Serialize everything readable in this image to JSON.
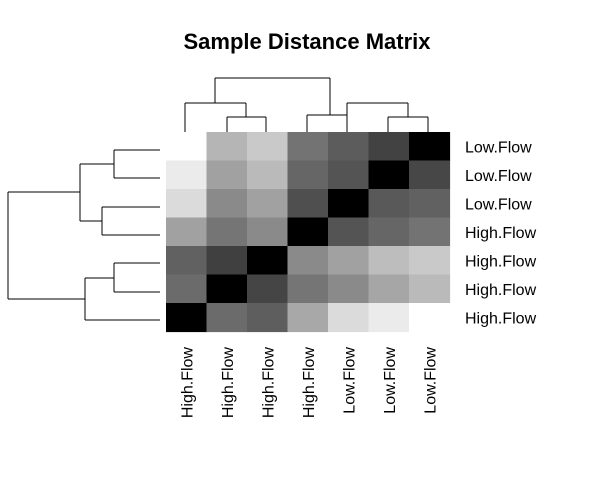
{
  "chart_data": {
    "type": "heatmap",
    "title": "Sample Distance Matrix",
    "row_labels": [
      "Low.Flow",
      "Low.Flow",
      "Low.Flow",
      "High.Flow",
      "High.Flow",
      "High.Flow",
      "High.Flow"
    ],
    "col_labels": [
      "High.Flow",
      "High.Flow",
      "High.Flow",
      "High.Flow",
      "Low.Flow",
      "Low.Flow",
      "Low.Flow"
    ],
    "color_scale": {
      "low": "#000000",
      "high": "#ffffff"
    },
    "values": [
      [
        1.0,
        0.71,
        0.79,
        0.45,
        0.36,
        0.26,
        0.0
      ],
      [
        0.92,
        0.63,
        0.73,
        0.4,
        0.33,
        0.0,
        0.28
      ],
      [
        0.86,
        0.54,
        0.63,
        0.31,
        0.0,
        0.35,
        0.38
      ],
      [
        0.63,
        0.46,
        0.54,
        0.0,
        0.33,
        0.4,
        0.45
      ],
      [
        0.38,
        0.25,
        0.0,
        0.54,
        0.63,
        0.74,
        0.79
      ],
      [
        0.42,
        0.0,
        0.27,
        0.46,
        0.54,
        0.65,
        0.73
      ],
      [
        0.0,
        0.42,
        0.37,
        0.66,
        0.86,
        0.92,
        1.0
      ]
    ],
    "row_dendrogram": true,
    "col_dendrogram": true,
    "legend": "none"
  }
}
